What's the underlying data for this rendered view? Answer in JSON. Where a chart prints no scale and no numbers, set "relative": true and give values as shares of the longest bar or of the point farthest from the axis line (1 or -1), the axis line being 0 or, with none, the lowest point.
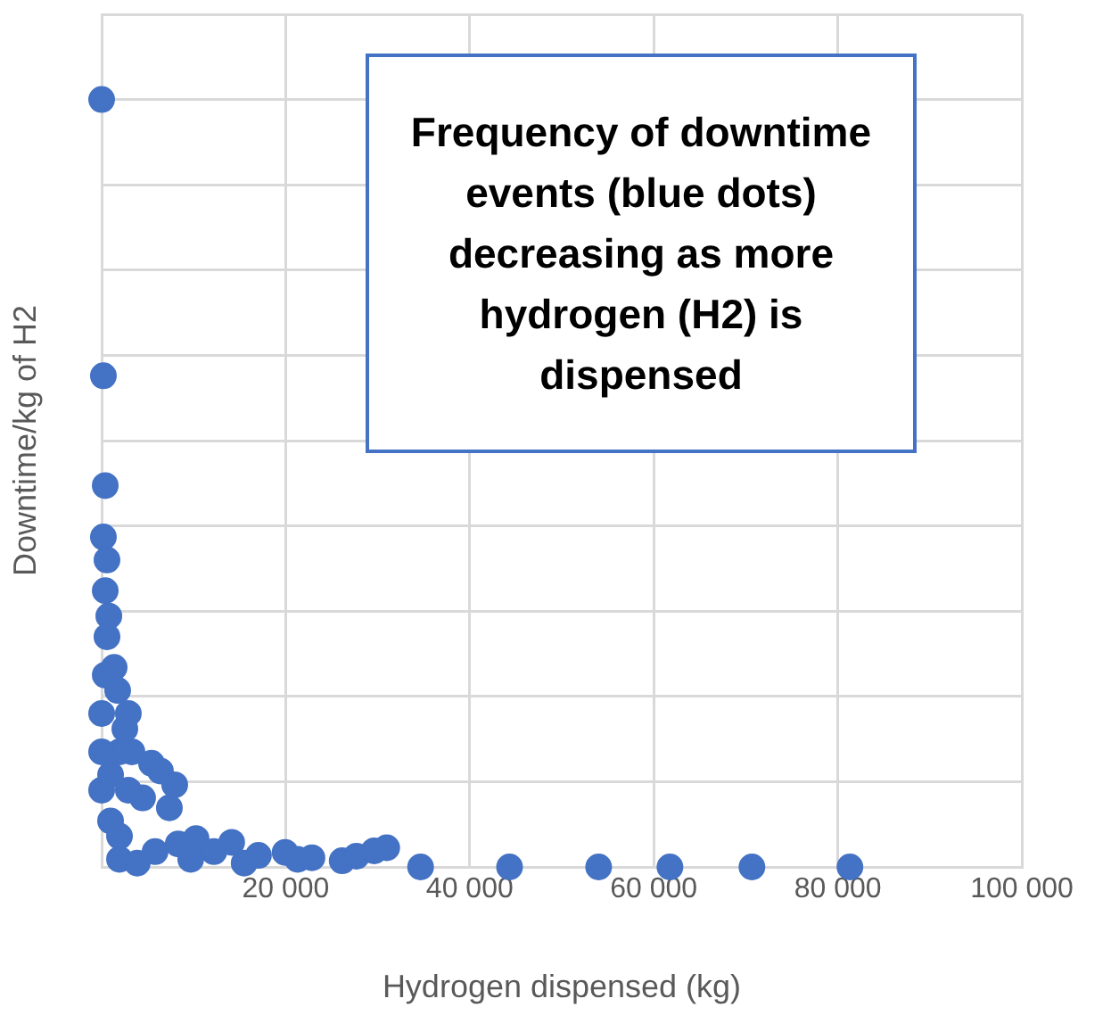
{
  "chart_data": {
    "type": "scatter",
    "relative": true,
    "xlabel": "Hydrogen dispensed (kg)",
    "ylabel": "Downtime/kg of H2",
    "annotations": [
      "Frequency of downtime events (blue dots) decreasing as more hydrogen (H2) is dispensed"
    ],
    "xlim": [
      0,
      100000
    ],
    "xticks": [
      {
        "value": 0,
        "label": null
      },
      {
        "value": 20000,
        "label": "20 000"
      },
      {
        "value": 40000,
        "label": "40 000"
      },
      {
        "value": 60000,
        "label": "60 000"
      },
      {
        "value": 80000,
        "label": "80 000"
      },
      {
        "value": 100000,
        "label": "100 000"
      }
    ],
    "grid": true,
    "marker": "circle",
    "tick_labels": "x",
    "series": [
      {
        "color": "#4472c4",
        "x": [
          0,
          190,
          390,
          190,
          580,
          390,
          780,
          1360,
          1740,
          2900,
          2520,
          3290,
          5420,
          6390,
          7940,
          7360,
          4450,
          2900,
          10260,
          8320,
          12200,
          14130,
          17040,
          19940,
          22850,
          26140,
          27690,
          29620,
          30980,
          34660,
          44330,
          54010,
          61760,
          70670,
          81320,
          1940,
          3870,
          5810,
          970,
          1940,
          0,
          970,
          1940,
          0,
          0,
          390,
          580,
          9680,
          15490,
          21300
        ],
        "values": [
          1,
          0.64,
          0.497,
          0.43,
          0.4,
          0.36,
          0.327,
          0.26,
          0.23,
          0.2,
          0.18,
          0.15,
          0.135,
          0.125,
          0.107,
          0.077,
          0.09,
          0.1,
          0.037,
          0.03,
          0.02,
          0.032,
          0.015,
          0.019,
          0.012,
          0.008,
          0.014,
          0.021,
          0.025,
          0,
          0,
          0,
          0,
          0,
          0,
          0.01,
          0.005,
          0.02,
          0.06,
          0.04,
          0.1,
          0.12,
          0.15,
          0.15,
          0.2,
          0.25,
          0.3,
          0.01,
          0.005,
          0.01
        ]
      }
    ]
  }
}
